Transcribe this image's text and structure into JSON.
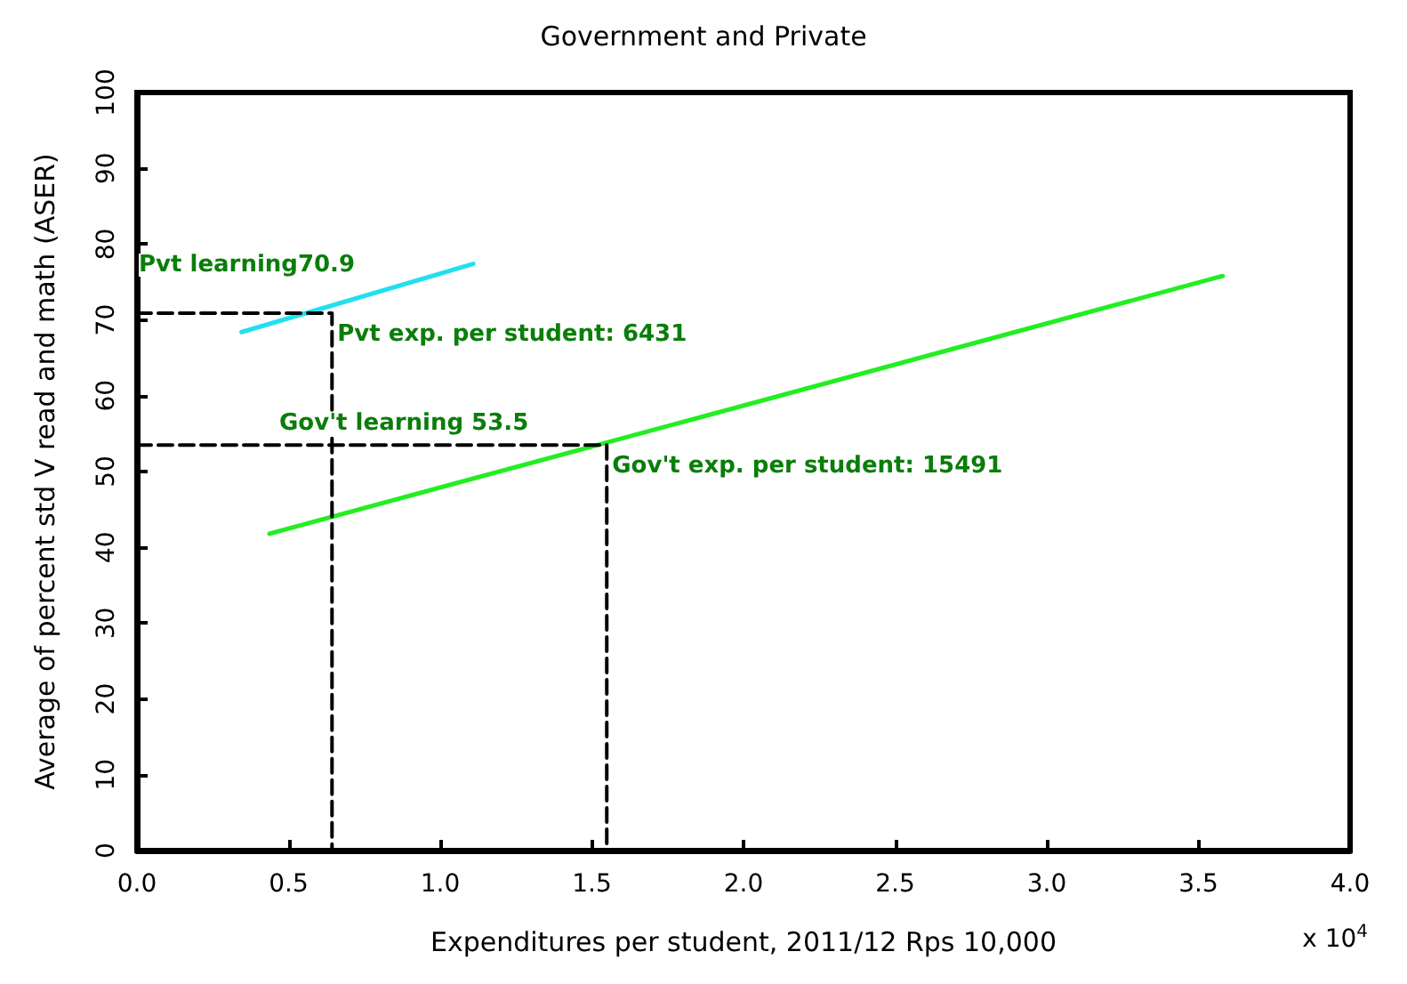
{
  "chart_data": {
    "type": "line",
    "title": "Government and Private",
    "xlabel": "Expenditures per student, 2011/12 Rps 10,000",
    "ylabel": "Average of percent std V read and math (ASER)",
    "xlim": [
      0,
      4
    ],
    "xticks": [
      {
        "value": 0,
        "label": "0.0"
      },
      0.5,
      {
        "value": 1,
        "label": "1.0"
      },
      1.5,
      {
        "value": 2,
        "label": "2.0"
      },
      2.5,
      {
        "value": 3,
        "label": "3.0"
      },
      3.5,
      {
        "value": 4,
        "label": "4.0"
      }
    ],
    "ylim": [
      0,
      100
    ],
    "yticks": [
      0,
      10,
      20,
      30,
      40,
      50,
      60,
      70,
      80,
      90,
      100
    ],
    "grid": false,
    "marker": "none",
    "series": [
      {
        "color": "#22dff0",
        "x": [
          0.345,
          1.109
        ],
        "values": [
          68.4,
          77.4
        ]
      },
      {
        "color": "#22ee22",
        "x": [
          0.437,
          3.58
        ],
        "values": [
          41.8,
          75.8
        ]
      },
      {
        "color": "#000000",
        "line_style": "dashed",
        "x": [
          0,
          0.6431,
          0.6431
        ],
        "values": [
          70.9,
          70.9,
          0
        ]
      },
      {
        "color": "#000000",
        "line_style": "dashed",
        "x": [
          0,
          1.5491,
          1.5491
        ],
        "values": [
          53.5,
          53.5,
          0
        ]
      }
    ],
    "annotations": [
      "Pvt learning70.9",
      {
        "text": "Pvt exp. per student: 6431",
        "x": 0.6431,
        "y": 70.9
      },
      "Gov't learning 53.5",
      {
        "text": "Gov't exp. per student: 15491",
        "x": 1.5491,
        "y": 53.5
      },
      "x 10$^{4}$"
    ]
  }
}
